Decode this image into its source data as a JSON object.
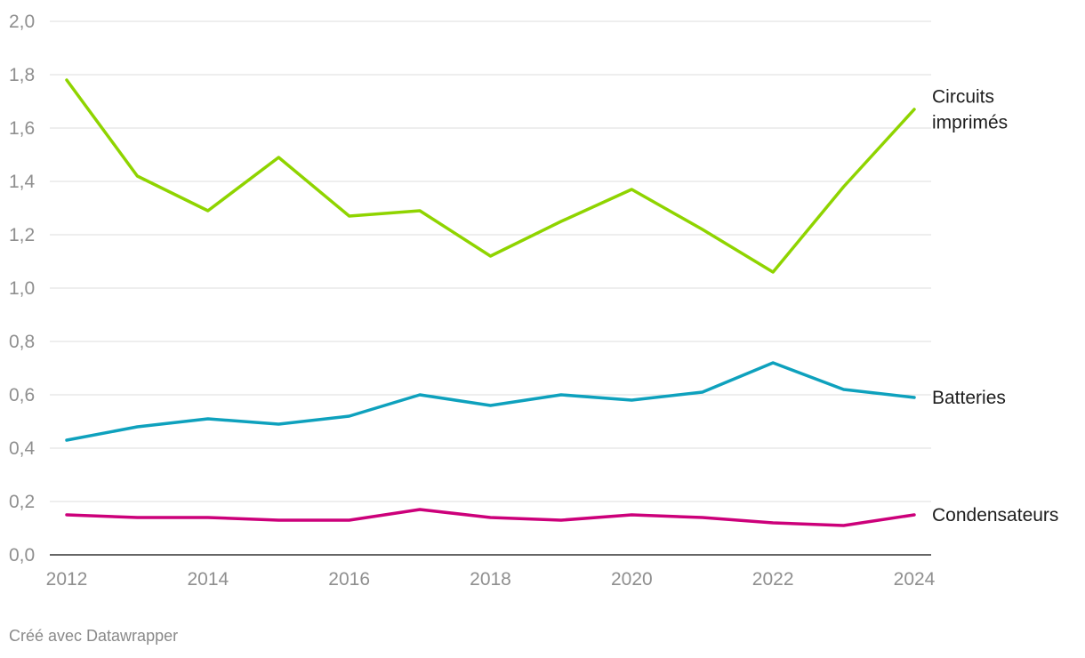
{
  "chart_data": {
    "type": "line",
    "x": [
      2012,
      2013,
      2014,
      2015,
      2016,
      2017,
      2018,
      2019,
      2020,
      2021,
      2022,
      2023,
      2024
    ],
    "x_tick_labels": [
      "2012",
      "2014",
      "2016",
      "2018",
      "2020",
      "2022",
      "2024"
    ],
    "y_tick_labels": [
      "0,0",
      "0,2",
      "0,4",
      "0,6",
      "0,8",
      "1,0",
      "1,2",
      "1,4",
      "1,6",
      "1,8",
      "2,0"
    ],
    "ylim": [
      0,
      2.0
    ],
    "grid": true,
    "legend": "direct labels at right end of lines",
    "series": [
      {
        "name_lines": [
          "Circuits",
          "imprimés"
        ],
        "color": "#8fd400",
        "values": [
          1.78,
          1.42,
          1.29,
          1.49,
          1.27,
          1.29,
          1.12,
          1.25,
          1.37,
          1.22,
          1.06,
          1.38,
          1.67
        ]
      },
      {
        "name_lines": [
          "Batteries"
        ],
        "color": "#0ea1bd",
        "values": [
          0.43,
          0.48,
          0.51,
          0.49,
          0.52,
          0.6,
          0.56,
          0.6,
          0.58,
          0.61,
          0.72,
          0.62,
          0.59
        ]
      },
      {
        "name_lines": [
          "Condensateurs"
        ],
        "color": "#cc007a",
        "values": [
          0.15,
          0.14,
          0.14,
          0.13,
          0.13,
          0.17,
          0.14,
          0.13,
          0.15,
          0.14,
          0.12,
          0.11,
          0.15
        ]
      }
    ]
  },
  "footer": {
    "credit": "Créé avec Datawrapper"
  }
}
